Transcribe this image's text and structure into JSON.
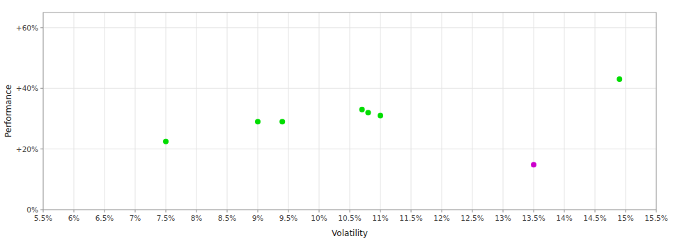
{
  "chart_data": {
    "type": "scatter",
    "xlabel": "Volatility",
    "ylabel": "Performance",
    "xlim": [
      0.055,
      0.155
    ],
    "ylim": [
      0.0,
      0.65
    ],
    "xticks": [
      {
        "value": 0.055,
        "label": "5.5%"
      },
      {
        "value": 0.06,
        "label": "6%"
      },
      {
        "value": 0.065,
        "label": "6.5%"
      },
      {
        "value": 0.07,
        "label": "7%"
      },
      {
        "value": 0.075,
        "label": "7.5%"
      },
      {
        "value": 0.08,
        "label": "8%"
      },
      {
        "value": 0.085,
        "label": "8.5%"
      },
      {
        "value": 0.09,
        "label": "9%"
      },
      {
        "value": 0.095,
        "label": "9.5%"
      },
      {
        "value": 0.1,
        "label": "10%"
      },
      {
        "value": 0.105,
        "label": "10.5%"
      },
      {
        "value": 0.11,
        "label": "11%"
      },
      {
        "value": 0.115,
        "label": "11.5%"
      },
      {
        "value": 0.12,
        "label": "12%"
      },
      {
        "value": 0.125,
        "label": "12.5%"
      },
      {
        "value": 0.13,
        "label": "13%"
      },
      {
        "value": 0.135,
        "label": "13.5%"
      },
      {
        "value": 0.14,
        "label": "14%"
      },
      {
        "value": 0.145,
        "label": "14.5%"
      },
      {
        "value": 0.15,
        "label": "15%"
      },
      {
        "value": 0.155,
        "label": "15.5%"
      }
    ],
    "yticks": [
      {
        "value": 0.0,
        "label": "0%"
      },
      {
        "value": 0.2,
        "label": "+20%"
      },
      {
        "value": 0.4,
        "label": "+40%"
      },
      {
        "value": 0.6,
        "label": "+60%"
      }
    ],
    "grid": true,
    "series": [
      {
        "color": "#00dd00",
        "x": [
          0.075,
          0.09,
          0.094,
          0.107,
          0.108,
          0.11,
          0.149
        ],
        "values": [
          0.225,
          0.29,
          0.29,
          0.33,
          0.32,
          0.31,
          0.43
        ]
      },
      {
        "color": "#cc00cc",
        "x": [
          0.135
        ],
        "values": [
          0.148
        ]
      }
    ]
  }
}
